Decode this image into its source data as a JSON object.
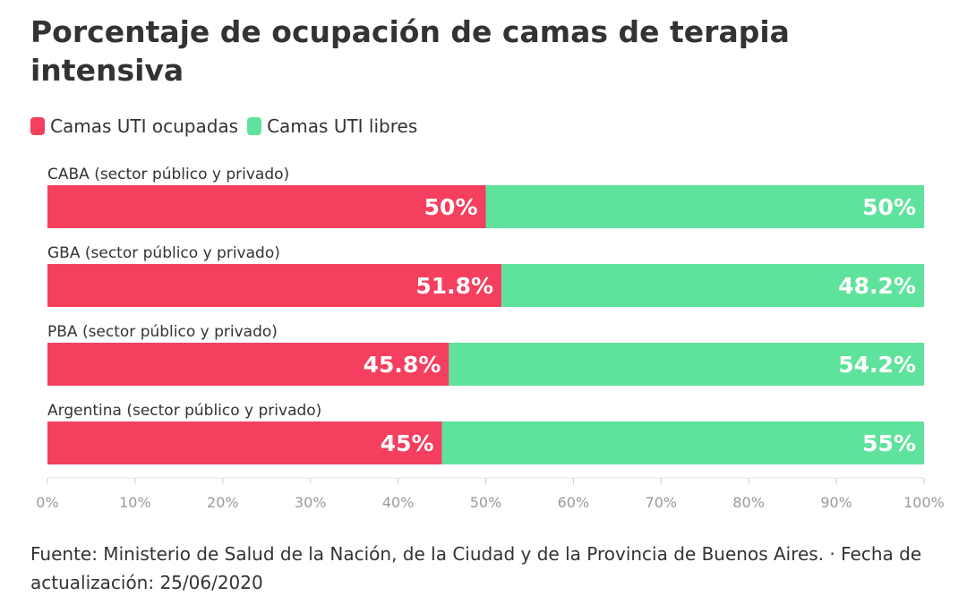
{
  "chart_data": {
    "type": "bar",
    "orientation": "horizontal",
    "stacked": true,
    "title": "Porcentaje de ocupación de camas de terapia intensiva",
    "categories": [
      "CABA (sector público y privado)",
      "GBA (sector público y privado)",
      "PBA (sector público y privado)",
      "Argentina (sector público y privado)"
    ],
    "series": [
      {
        "name": "Camas UTI ocupadas",
        "color": "#f43f5e",
        "values": [
          50,
          51.8,
          45.8,
          45
        ],
        "labels": [
          "50%",
          "51.8%",
          "45.8%",
          "45%"
        ]
      },
      {
        "name": "Camas UTI libres",
        "color": "#5fe39c",
        "values": [
          50,
          48.2,
          54.2,
          55
        ],
        "labels": [
          "50%",
          "48.2%",
          "54.2%",
          "55%"
        ]
      }
    ],
    "xlim": [
      0,
      100
    ],
    "xticks": [
      "0%",
      "10%",
      "20%",
      "30%",
      "40%",
      "50%",
      "60%",
      "70%",
      "80%",
      "90%",
      "100%"
    ],
    "legend_position": "top-left",
    "grid": false
  },
  "source_text": "Fuente: Ministerio de Salud de la Nación, de la Ciudad y de la Provincia de Buenos Aires. · Fecha de actualización: 25/06/2020"
}
